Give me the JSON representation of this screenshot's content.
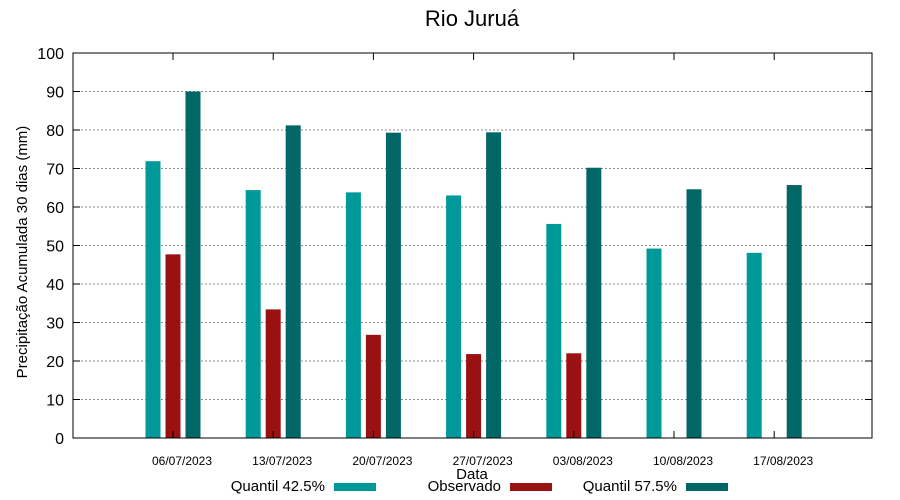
{
  "chart_data": {
    "type": "bar",
    "title": "Rio Juruá",
    "xlabel": "Data",
    "ylabel": "Precipitação Acumulada 30 dias (mm)",
    "ylim": [
      0,
      100
    ],
    "yticks": [
      0,
      10,
      20,
      30,
      40,
      50,
      60,
      70,
      80,
      90,
      100
    ],
    "grid": true,
    "legend_position": "bottom",
    "categories": [
      "06/07/2023",
      "13/07/2023",
      "20/07/2023",
      "27/07/2023",
      "03/08/2023",
      "10/08/2023",
      "17/08/2023"
    ],
    "series": [
      {
        "name": "Quantil 42.5%",
        "color": "#009999",
        "values": [
          71.9,
          64.4,
          63.8,
          63.0,
          55.6,
          49.2,
          48.1
        ]
      },
      {
        "name": "Observado",
        "color": "#991111",
        "values": [
          47.7,
          33.4,
          26.8,
          21.8,
          22.0,
          null,
          null
        ]
      },
      {
        "name": "Quantil 57.5%",
        "color": "#006666",
        "values": [
          90.0,
          81.2,
          79.3,
          79.4,
          70.2,
          64.6,
          65.7
        ]
      }
    ]
  }
}
